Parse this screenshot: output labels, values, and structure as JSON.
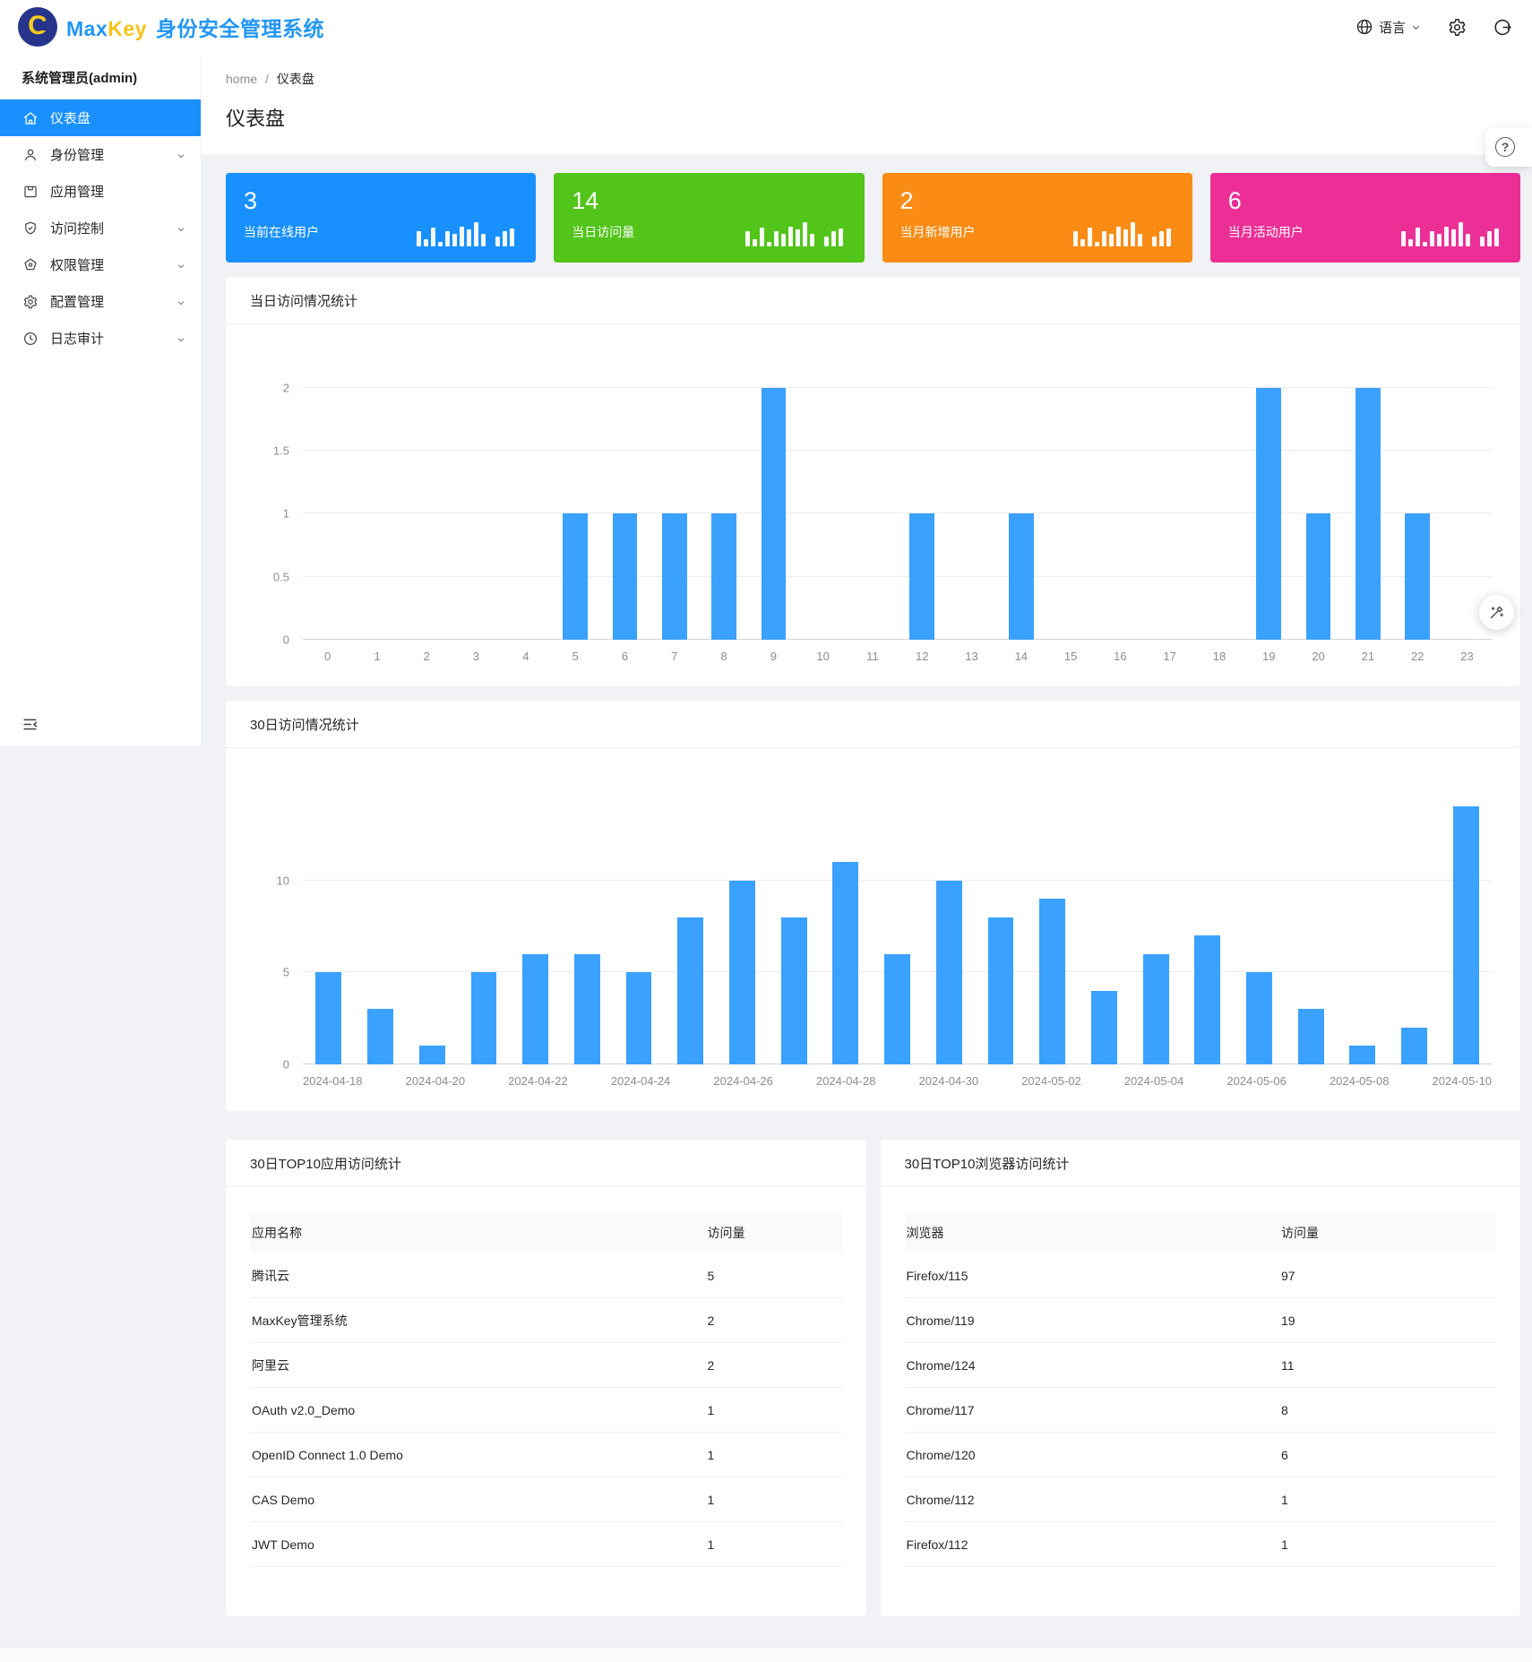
{
  "header": {
    "brand_max": "Max",
    "brand_key": "Key",
    "brand_suffix": "身份安全管理系统",
    "language_label": "语言"
  },
  "sidebar": {
    "admin_label": "系统管理员(admin)",
    "items": [
      {
        "label": "仪表盘",
        "icon": "home-icon",
        "selected": true,
        "has_arrow": false
      },
      {
        "label": "身份管理",
        "icon": "user-icon",
        "selected": false,
        "has_arrow": true
      },
      {
        "label": "应用管理",
        "icon": "appstore-icon",
        "selected": false,
        "has_arrow": false
      },
      {
        "label": "访问控制",
        "icon": "shield-icon",
        "selected": false,
        "has_arrow": true
      },
      {
        "label": "权限管理",
        "icon": "permission-icon",
        "selected": false,
        "has_arrow": true
      },
      {
        "label": "配置管理",
        "icon": "gear-icon",
        "selected": false,
        "has_arrow": true
      },
      {
        "label": "日志审计",
        "icon": "clock-icon",
        "selected": false,
        "has_arrow": true
      }
    ]
  },
  "breadcrumb": {
    "home": "home",
    "separator": "/",
    "current": "仪表盘"
  },
  "page": {
    "title": "仪表盘"
  },
  "stat_cards": [
    {
      "value": "3",
      "label": "当前在线用户",
      "color": "#1890ff"
    },
    {
      "value": "14",
      "label": "当日访问量",
      "color": "#52c41a"
    },
    {
      "value": "2",
      "label": "当月新增用户",
      "color": "#fa8c16"
    },
    {
      "value": "6",
      "label": "当月活动用户",
      "color": "#eb2f96"
    }
  ],
  "sparkline_bars": [
    46,
    22,
    58,
    14,
    48,
    38,
    60,
    52,
    76,
    40,
    0,
    30,
    46,
    56
  ],
  "chart_data": [
    {
      "type": "bar",
      "title": "当日访问情况统计",
      "categories": [
        "0",
        "1",
        "2",
        "3",
        "4",
        "5",
        "6",
        "7",
        "8",
        "9",
        "10",
        "11",
        "12",
        "13",
        "14",
        "15",
        "16",
        "17",
        "18",
        "19",
        "20",
        "21",
        "22",
        "23"
      ],
      "values": [
        0,
        0,
        0,
        0,
        0,
        1,
        1,
        1,
        1,
        2,
        0,
        0,
        1,
        0,
        1,
        0,
        0,
        0,
        0,
        2,
        1,
        2,
        1,
        0
      ],
      "xlabel": "",
      "ylabel": "",
      "ylim": [
        0,
        2
      ],
      "scale_max": 2.39,
      "y_ticks": [
        {
          "v": 0,
          "label": "0"
        },
        {
          "v": 0.5,
          "label": "0.5"
        },
        {
          "v": 1,
          "label": "1"
        },
        {
          "v": 1.5,
          "label": "1.5"
        },
        {
          "v": 2,
          "label": "2"
        }
      ],
      "x_label_every": 1,
      "bar_color": "#3aa1ff",
      "grid": "on",
      "legend": "none"
    },
    {
      "type": "bar",
      "title": "30日访问情况统计",
      "categories": [
        "2024-04-18",
        "2024-04-19",
        "2024-04-20",
        "2024-04-21",
        "2024-04-22",
        "2024-04-23",
        "2024-04-24",
        "2024-04-25",
        "2024-04-26",
        "2024-04-27",
        "2024-04-28",
        "2024-04-29",
        "2024-04-30",
        "2024-05-01",
        "2024-05-02",
        "2024-05-03",
        "2024-05-04",
        "2024-05-05",
        "2024-05-06",
        "2024-05-07",
        "2024-05-08",
        "2024-05-09",
        "2024-05-10"
      ],
      "values": [
        5,
        3,
        1,
        5,
        6,
        6,
        5,
        8,
        10,
        8,
        11,
        6,
        10,
        8,
        9,
        4,
        6,
        7,
        5,
        3,
        1,
        2,
        14
      ],
      "xlabel": "",
      "ylabel": "",
      "ylim": [
        0,
        10
      ],
      "scale_max": 16.4,
      "y_ticks": [
        {
          "v": 0,
          "label": "0"
        },
        {
          "v": 5,
          "label": "5"
        },
        {
          "v": 10,
          "label": "10"
        }
      ],
      "x_label_every": 2,
      "bar_color": "#3aa1ff",
      "grid": "on",
      "legend": "none"
    }
  ],
  "tables": [
    {
      "title": "30日TOP10应用访问统计",
      "columns": [
        "应用名称",
        "访问量"
      ],
      "rows": [
        [
          "腾讯云",
          "5"
        ],
        [
          "MaxKey管理系统",
          "2"
        ],
        [
          "阿里云",
          "2"
        ],
        [
          "OAuth v2.0_Demo",
          "1"
        ],
        [
          "OpenID Connect 1.0 Demo",
          "1"
        ],
        [
          "CAS Demo",
          "1"
        ],
        [
          "JWT Demo",
          "1"
        ]
      ]
    },
    {
      "title": "30日TOP10浏览器访问统计",
      "columns": [
        "浏览器",
        "访问量"
      ],
      "rows": [
        [
          "Firefox/115",
          "97"
        ],
        [
          "Chrome/119",
          "19"
        ],
        [
          "Chrome/124",
          "11"
        ],
        [
          "Chrome/117",
          "8"
        ],
        [
          "Chrome/120",
          "6"
        ],
        [
          "Chrome/112",
          "1"
        ],
        [
          "Firefox/112",
          "1"
        ]
      ]
    }
  ],
  "colors": {
    "accent": "#1890ff",
    "bar": "#3aa1ff",
    "stat_blue": "#1890ff",
    "stat_green": "#52c41a",
    "stat_orange": "#fa8c16",
    "stat_pink": "#eb2f96",
    "page_bg": "#f0f2f5"
  }
}
